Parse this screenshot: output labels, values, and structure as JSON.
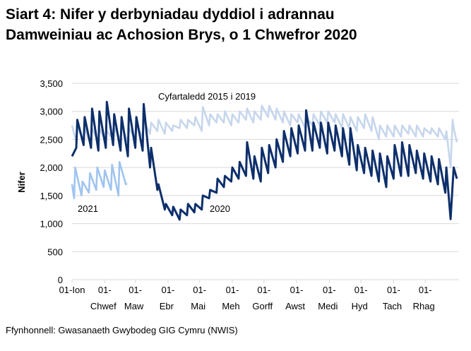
{
  "title_line1": "Siart 4: Nifer y derbyniadau dyddiol i adrannau",
  "title_line2": "Damweiniau ac Achosion Brys, o 1 Chwefror 2020",
  "source": "Ffynhonnell: Gwasanaeth Gwybodeg GIG Cymru (NWIS)",
  "chart_data": {
    "type": "line",
    "title": "Siart 4: Nifer y derbyniadau dyddiol i adrannau Damweiniau ac Achosion Brys, o 1 Chwefror 2020",
    "xlabel": "",
    "ylabel": "Nifer",
    "ylim": [
      0,
      3500
    ],
    "yticks": [
      "0",
      "500",
      "1,000",
      "1,500",
      "2,000",
      "2,500",
      "3,000",
      "3,500"
    ],
    "xticks": [
      {
        "l1": "01-Ion",
        "l2": ""
      },
      {
        "l1": "01-",
        "l2": "Chwef"
      },
      {
        "l1": "01-",
        "l2": "Maw"
      },
      {
        "l1": "01-",
        "l2": "Ebr"
      },
      {
        "l1": "01-",
        "l2": "Mai"
      },
      {
        "l1": "01-",
        "l2": "Meh"
      },
      {
        "l1": "01-",
        "l2": "Gorff"
      },
      {
        "l1": "01-",
        "l2": "Awst"
      },
      {
        "l1": "01-",
        "l2": "Medi"
      },
      {
        "l1": "01-",
        "l2": "Hyd"
      },
      {
        "l1": "01-",
        "l2": "Tach"
      },
      {
        "l1": "01-",
        "l2": "Rhag"
      }
    ],
    "grid": true,
    "legend": "inline labels",
    "colors": {
      "2020": "#0d2f6b",
      "average": "#c6d6ec",
      "2021": "#9fc4f0",
      "grid": "#d9d9d9"
    },
    "annotations": {
      "average": "Cyfartaledd 2015 i 2019",
      "2021": "2021",
      "2020": "2020"
    },
    "x": [
      "01-01",
      "01-05",
      "01-06",
      "01-12",
      "01-13",
      "01-19",
      "01-20",
      "01-26",
      "01-27",
      "02-02",
      "02-03",
      "02-09",
      "02-10",
      "02-16",
      "02-17",
      "02-23",
      "02-24",
      "03-01",
      "03-02",
      "03-08",
      "03-09",
      "03-15",
      "03-16",
      "03-22",
      "03-23",
      "03-29",
      "03-30",
      "04-05",
      "04-06",
      "04-12",
      "04-13",
      "04-19",
      "04-20",
      "04-26",
      "04-27",
      "05-03",
      "05-04",
      "05-10",
      "05-11",
      "05-17",
      "05-18",
      "05-24",
      "05-25",
      "05-31",
      "06-01",
      "06-07",
      "06-08",
      "06-14",
      "06-15",
      "06-21",
      "06-22",
      "06-28",
      "06-29",
      "07-05",
      "07-06",
      "07-12",
      "07-13",
      "07-19",
      "07-20",
      "07-26",
      "07-27",
      "08-02",
      "08-03",
      "08-09",
      "08-10",
      "08-16",
      "08-17",
      "08-23",
      "08-24",
      "08-30",
      "08-31",
      "09-06",
      "09-07",
      "09-13",
      "09-14",
      "09-20",
      "09-21",
      "09-27",
      "09-28",
      "10-04",
      "10-05",
      "10-11",
      "10-12",
      "10-18",
      "10-19",
      "10-25",
      "10-26",
      "11-01",
      "11-02",
      "11-08",
      "11-09",
      "11-15",
      "11-16",
      "11-22",
      "11-23",
      "11-29",
      "11-30",
      "12-06",
      "12-07",
      "12-13",
      "12-14",
      "12-20",
      "12-21",
      "12-25",
      "12-27",
      "12-28",
      "12-31"
    ],
    "series": [
      {
        "name": "Cyfartaledd 2015 i 2019",
        "key": "average",
        "values": [
          2750,
          2450,
          2750,
          2450,
          2700,
          2400,
          2700,
          2450,
          2700,
          2450,
          2650,
          2500,
          2700,
          2500,
          2750,
          2450,
          2700,
          2500,
          2750,
          2550,
          2850,
          2600,
          2800,
          2650,
          2850,
          2600,
          2800,
          2650,
          2750,
          2700,
          2850,
          2700,
          2850,
          2750,
          2900,
          2650,
          3080,
          2750,
          2950,
          2800,
          2950,
          2800,
          3000,
          2750,
          2950,
          2800,
          3000,
          2850,
          3050,
          2800,
          3000,
          2850,
          3100,
          2900,
          3100,
          2850,
          3050,
          2800,
          3000,
          2750,
          2950,
          2800,
          2950,
          2700,
          2900,
          2750,
          2950,
          2750,
          3000,
          2800,
          3000,
          2800,
          2950,
          2700,
          2950,
          2700,
          2900,
          2650,
          2900,
          2700,
          2950,
          2650,
          2900,
          2500,
          2750,
          2550,
          2750,
          2550,
          2750,
          2550,
          2750,
          2600,
          2750,
          2550,
          2750,
          2550,
          2700,
          2600,
          2700,
          2550,
          2700,
          2500,
          2650,
          2000,
          2850,
          2700,
          2450
        ]
      },
      {
        "name": "2020",
        "key": "2020",
        "values": [
          2200,
          2350,
          2850,
          2400,
          2900,
          2350,
          3050,
          2300,
          3000,
          2350,
          3170,
          2400,
          2950,
          2300,
          2900,
          2200,
          3050,
          2350,
          2900,
          2300,
          3130,
          2000,
          2350,
          1600,
          1700,
          1250,
          1350,
          1150,
          1300,
          1070,
          1250,
          1150,
          1350,
          1200,
          1350,
          1250,
          1500,
          1450,
          1600,
          1550,
          1800,
          1650,
          1850,
          1750,
          2000,
          1800,
          2100,
          1850,
          2450,
          1800,
          2200,
          1750,
          2350,
          1900,
          2400,
          2000,
          2500,
          2100,
          2650,
          2200,
          2700,
          2250,
          2750,
          2300,
          3020,
          2300,
          2800,
          2350,
          2800,
          2250,
          2800,
          2300,
          2750,
          2200,
          2700,
          2050,
          2700,
          1950,
          2400,
          1900,
          2350,
          1850,
          2300,
          1750,
          2250,
          1650,
          2200,
          1800,
          2400,
          1850,
          2450,
          1850,
          2400,
          1900,
          2300,
          1800,
          2250,
          1750,
          2200,
          1700,
          2150,
          1550,
          2000,
          1080,
          1700,
          2000,
          1800
        ]
      },
      {
        "name": "2021",
        "key": "2021",
        "x": [
          "01-01",
          "01-03",
          "01-04",
          "01-10",
          "01-11",
          "01-17",
          "01-18",
          "01-24",
          "01-25",
          "01-31",
          "02-01",
          "02-07",
          "02-08",
          "02-14",
          "02-15",
          "02-21",
          "02-22"
        ],
        "values": [
          1700,
          1450,
          2000,
          1500,
          1750,
          1550,
          1900,
          1600,
          2000,
          1650,
          1950,
          1600,
          2050,
          1500,
          2100,
          1700,
          1720
        ]
      }
    ]
  }
}
